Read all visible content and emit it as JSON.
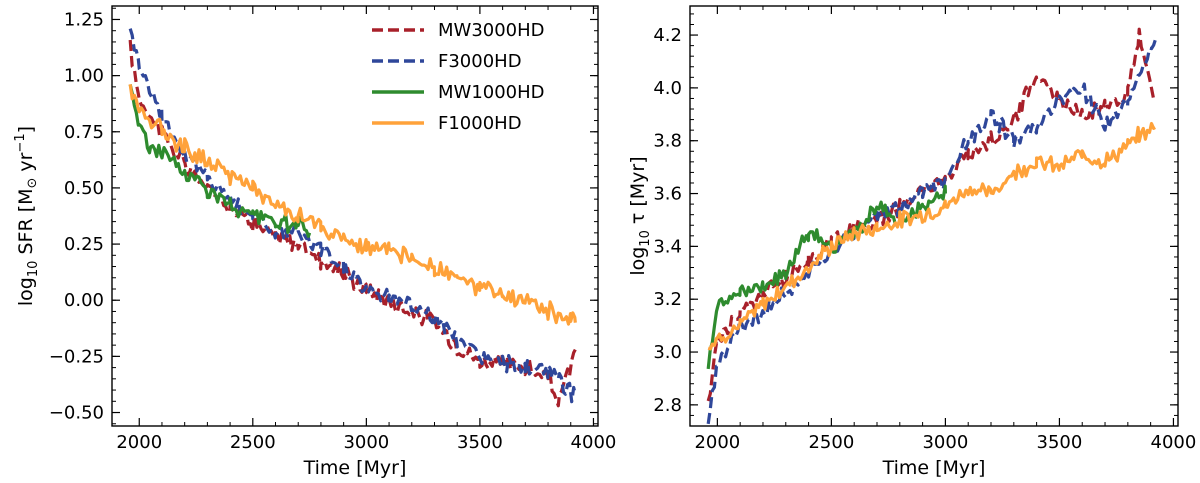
{
  "chart_data": [
    {
      "type": "line",
      "panel": "left",
      "xlabel": "Time [Myr]",
      "ylabel_parts": {
        "log": "log",
        "sub": "10",
        "main": " SFR [M",
        "sun": "⊙",
        "unit": " yr",
        "exp": "−1",
        "close": "]"
      },
      "xlim": [
        1880,
        4020
      ],
      "ylim": [
        -0.56,
        1.31
      ],
      "xticks": [
        2000,
        2500,
        3000,
        3500,
        4000
      ],
      "xtick_labels": [
        "2000",
        "2500",
        "3000",
        "3500",
        "4000"
      ],
      "yticks": [
        -0.5,
        -0.25,
        0.0,
        0.25,
        0.5,
        0.75,
        1.0,
        1.25
      ],
      "ytick_labels": [
        "−0.50",
        "−0.25",
        "0.00",
        "0.25",
        "0.50",
        "0.75",
        "1.00",
        "1.25"
      ],
      "legend_position": "top-right",
      "series": [
        {
          "name": "MW3000HD",
          "color": "#a8202a",
          "style": "dashed",
          "x": [
            1960,
            2000,
            2100,
            2200,
            2300,
            2400,
            2500,
            2600,
            2700,
            2800,
            2900,
            3000,
            3100,
            3200,
            3300,
            3400,
            3500,
            3600,
            3700,
            3800,
            3850,
            3920
          ],
          "y": [
            1.12,
            0.9,
            0.75,
            0.6,
            0.5,
            0.42,
            0.35,
            0.28,
            0.25,
            0.18,
            0.12,
            0.05,
            0.0,
            -0.05,
            -0.1,
            -0.2,
            -0.27,
            -0.28,
            -0.3,
            -0.35,
            -0.45,
            -0.22
          ]
        },
        {
          "name": "F3000HD",
          "color": "#2f479a",
          "style": "dashed",
          "x": [
            1960,
            2000,
            2100,
            2200,
            2300,
            2400,
            2500,
            2600,
            2700,
            2800,
            2900,
            3000,
            3100,
            3200,
            3300,
            3400,
            3500,
            3600,
            3700,
            3800,
            3850,
            3920
          ],
          "y": [
            1.22,
            1.05,
            0.82,
            0.65,
            0.55,
            0.45,
            0.38,
            0.3,
            0.3,
            0.22,
            0.15,
            0.05,
            0.02,
            -0.02,
            -0.08,
            -0.18,
            -0.25,
            -0.28,
            -0.3,
            -0.32,
            -0.36,
            -0.42
          ]
        },
        {
          "name": "MW1000HD",
          "color": "#2e8b2e",
          "style": "solid",
          "x": [
            1960,
            2000,
            2050,
            2100,
            2200,
            2300,
            2400,
            2500,
            2600,
            2700,
            2750
          ],
          "y": [
            0.96,
            0.78,
            0.68,
            0.66,
            0.57,
            0.5,
            0.42,
            0.38,
            0.35,
            0.33,
            0.3
          ]
        },
        {
          "name": "F1000HD",
          "color": "#ffa23a",
          "style": "solid",
          "x": [
            1960,
            2000,
            2100,
            2200,
            2300,
            2400,
            2500,
            2600,
            2700,
            2800,
            2900,
            3000,
            3100,
            3200,
            3300,
            3400,
            3500,
            3600,
            3700,
            3800,
            3900,
            3920
          ],
          "y": [
            0.95,
            0.85,
            0.76,
            0.68,
            0.62,
            0.56,
            0.5,
            0.42,
            0.38,
            0.32,
            0.27,
            0.24,
            0.22,
            0.18,
            0.15,
            0.1,
            0.05,
            0.02,
            0.0,
            -0.05,
            -0.08,
            -0.1
          ]
        }
      ]
    },
    {
      "type": "line",
      "panel": "right",
      "xlabel": "Time [Myr]",
      "ylabel_parts": {
        "log": "log",
        "sub": "10",
        "main": " τ [Myr]"
      },
      "xlim": [
        1880,
        4020
      ],
      "ylim": [
        2.72,
        4.31
      ],
      "xticks": [
        2000,
        2500,
        3000,
        3500,
        4000
      ],
      "xtick_labels": [
        "2000",
        "2500",
        "3000",
        "3500",
        "4000"
      ],
      "yticks": [
        2.8,
        3.0,
        3.2,
        3.4,
        3.6,
        3.8,
        4.0,
        4.2
      ],
      "ytick_labels": [
        "2.8",
        "3.0",
        "3.2",
        "3.4",
        "3.6",
        "3.8",
        "4.0",
        "4.2"
      ],
      "series": [
        {
          "name": "MW3000HD",
          "color": "#a8202a",
          "style": "dashed",
          "x": [
            1960,
            2000,
            2100,
            2200,
            2300,
            2400,
            2500,
            2600,
            2700,
            2800,
            2900,
            3000,
            3100,
            3200,
            3300,
            3400,
            3500,
            3600,
            3700,
            3800,
            3850,
            3920
          ],
          "y": [
            2.8,
            3.05,
            3.15,
            3.22,
            3.28,
            3.35,
            3.42,
            3.47,
            3.5,
            3.55,
            3.62,
            3.65,
            3.75,
            3.8,
            3.88,
            4.05,
            3.95,
            3.9,
            3.93,
            3.98,
            4.2,
            3.95
          ]
        },
        {
          "name": "F3000HD",
          "color": "#2f479a",
          "style": "dashed",
          "x": [
            1960,
            2000,
            2100,
            2200,
            2300,
            2400,
            2500,
            2600,
            2700,
            2800,
            2900,
            3000,
            3100,
            3200,
            3300,
            3400,
            3500,
            3600,
            3700,
            3800,
            3850,
            3920
          ],
          "y": [
            2.75,
            2.95,
            3.1,
            3.15,
            3.22,
            3.3,
            3.38,
            3.45,
            3.52,
            3.55,
            3.6,
            3.65,
            3.8,
            3.9,
            3.8,
            3.85,
            3.95,
            4.0,
            3.85,
            3.95,
            4.05,
            4.18
          ]
        },
        {
          "name": "MW1000HD",
          "color": "#2e8b2e",
          "style": "solid",
          "x": [
            1960,
            2000,
            2100,
            2200,
            2300,
            2400,
            2500,
            2600,
            2700,
            2800,
            2900,
            3000
          ],
          "y": [
            2.95,
            3.18,
            3.22,
            3.25,
            3.3,
            3.45,
            3.4,
            3.45,
            3.55,
            3.5,
            3.55,
            3.6
          ]
        },
        {
          "name": "F1000HD",
          "color": "#ffa23a",
          "style": "solid",
          "x": [
            1960,
            2000,
            2100,
            2200,
            2300,
            2400,
            2500,
            2600,
            2700,
            2800,
            2900,
            3000,
            3100,
            3200,
            3300,
            3400,
            3500,
            3600,
            3700,
            3800,
            3850,
            3920
          ],
          "y": [
            3.02,
            3.05,
            3.1,
            3.18,
            3.25,
            3.32,
            3.4,
            3.45,
            3.47,
            3.5,
            3.52,
            3.55,
            3.62,
            3.6,
            3.68,
            3.72,
            3.7,
            3.75,
            3.72,
            3.78,
            3.82,
            3.85
          ]
        }
      ]
    }
  ]
}
